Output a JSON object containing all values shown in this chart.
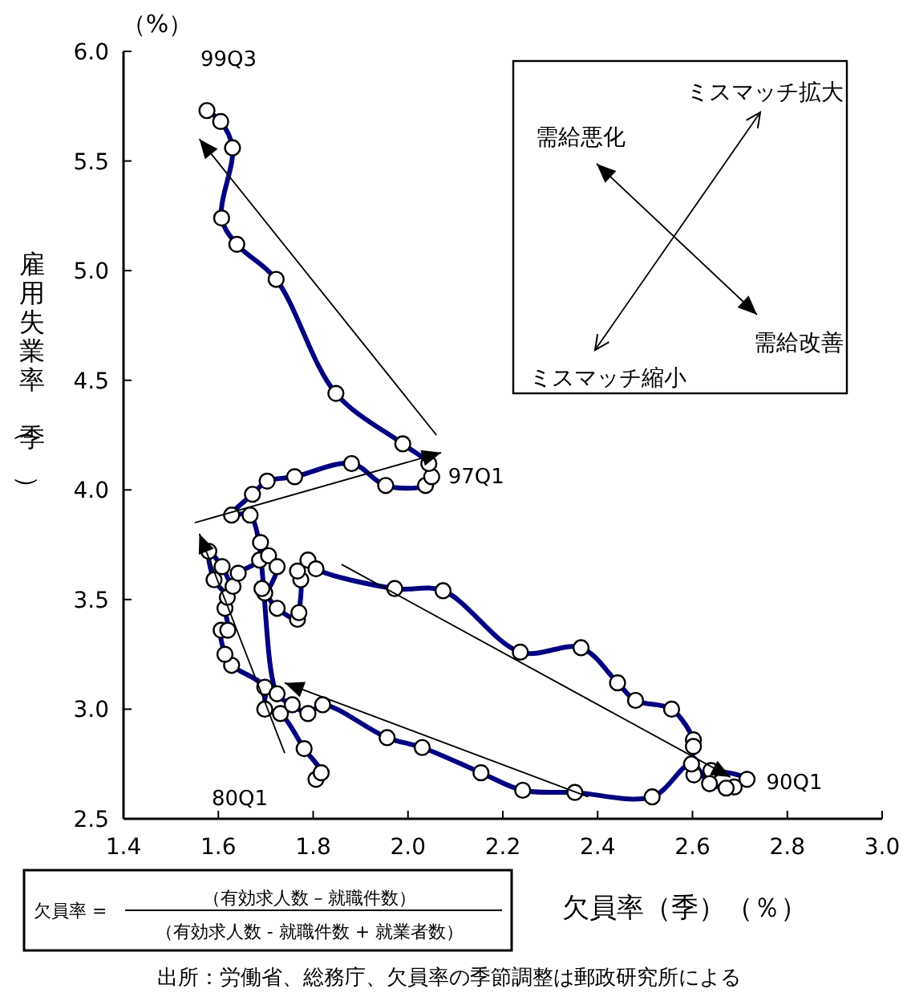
{
  "chart_data": {
    "type": "line",
    "xlabel": "欠員率（季）（％）",
    "ylabel": "雇用失業率（季）",
    "xlim": [
      1.4,
      3.0
    ],
    "xticks": [
      1.4,
      1.6,
      1.8,
      {
        "value": 2,
        "label": "2.0"
      },
      2.2,
      2.4,
      2.6,
      2.8,
      {
        "value": 3,
        "label": "3.0"
      }
    ],
    "ylim": [
      2.5,
      6.0
    ],
    "yticks": [
      2.5,
      {
        "value": 3,
        "label": "3.0"
      },
      3.5,
      {
        "value": 4,
        "label": "4.0"
      },
      4.5,
      {
        "value": 5,
        "label": "5.0"
      },
      5.5,
      {
        "value": 6,
        "label": "6.0"
      }
    ],
    "grid": false,
    "marker": "circle",
    "line_style": "solid",
    "series": [
      {
        "color": "#000080",
        "x": [
          1.806,
          1.817,
          1.781,
          1.731,
          1.698,
          1.698,
          1.628,
          1.614,
          1.606,
          1.62,
          1.614,
          1.619,
          1.591,
          1.58,
          1.608,
          1.631,
          1.642,
          1.687,
          1.689,
          1.706,
          1.724,
          1.698,
          1.692,
          1.724,
          1.767,
          1.77,
          1.774,
          1.767,
          1.789,
          1.806,
          1.972,
          2.074,
          2.237,
          2.365,
          2.442,
          2.48,
          2.556,
          2.602,
          2.602,
          2.603,
          2.639,
          2.715,
          2.688,
          2.671,
          2.636,
          2.598,
          2.515,
          2.352,
          2.242,
          2.154,
          2.03,
          1.956,
          1.82,
          1.789,
          1.756,
          1.724,
          1.667,
          1.628,
          1.672,
          1.703,
          1.761,
          1.881,
          1.953,
          2.037,
          2.05,
          2.044,
          1.989,
          1.848,
          1.722,
          1.639,
          1.607,
          1.63,
          1.605,
          1.576
        ],
        "values": [
          2.68,
          2.71,
          2.82,
          2.98,
          3.0,
          3.1,
          3.2,
          3.25,
          3.36,
          3.36,
          3.46,
          3.51,
          3.59,
          3.72,
          3.65,
          3.56,
          3.62,
          3.68,
          3.76,
          3.7,
          3.65,
          3.53,
          3.55,
          3.46,
          3.41,
          3.44,
          3.59,
          3.63,
          3.68,
          3.64,
          3.55,
          3.54,
          3.26,
          3.28,
          3.12,
          3.04,
          3.0,
          2.86,
          2.83,
          2.7,
          2.72,
          2.68,
          2.645,
          2.64,
          2.66,
          2.75,
          2.6,
          2.62,
          2.63,
          2.71,
          2.825,
          2.87,
          3.02,
          2.98,
          3.02,
          3.07,
          3.885,
          3.885,
          3.98,
          4.04,
          4.06,
          4.12,
          4.02,
          4.02,
          4.06,
          4.12,
          4.21,
          4.44,
          4.96,
          5.12,
          5.24,
          5.56,
          5.68,
          5.73
        ]
      }
    ],
    "annotations": [
      {
        "text": "99Q3",
        "x": 1.576,
        "y": 5.73
      },
      {
        "text": "97Q1",
        "x": 2.044,
        "y": 4.12
      },
      {
        "text": "90Q1",
        "x": 2.715,
        "y": 2.68
      },
      {
        "text": "80Q1",
        "x": 1.806,
        "y": 2.68
      },
      "（%）",
      "需給悪化",
      "ミスマッチ拡大",
      "ミスマッチ縮小",
      "需給改善",
      "欠員率 =",
      "（有効求人数 – 就職件数）",
      "（有効求人数 - 就職件数 + 就業者数）",
      "出所：労働省、総務庁、欠員率の季節調整は郵政研究所による"
    ]
  }
}
